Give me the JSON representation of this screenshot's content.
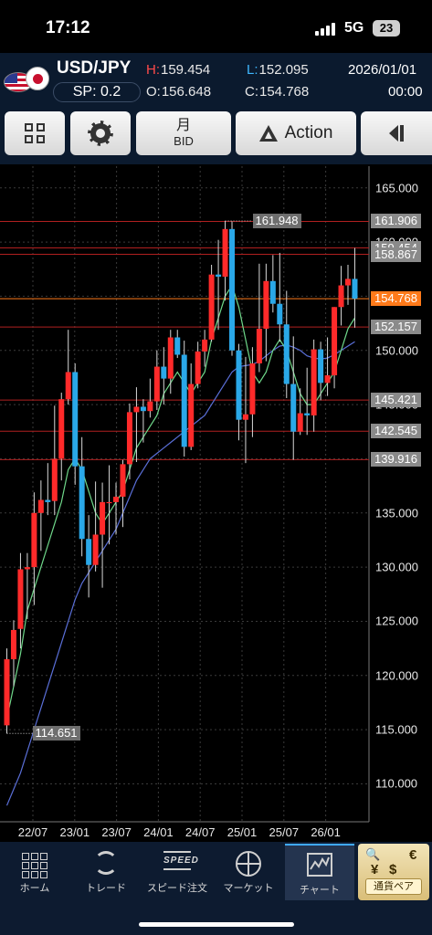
{
  "status_bar": {
    "time": "17:12",
    "network": "5G",
    "battery": "23"
  },
  "quote": {
    "pair": "USD/JPY",
    "spread": "SP: 0.2",
    "high_key": "H:",
    "high": "159.454",
    "low_key": "L:",
    "low": "152.095",
    "open_key": "O:",
    "open": "156.648",
    "close_key": "C:",
    "close": "154.768",
    "date": "2026/01/01",
    "time": "00:00"
  },
  "toolbar": {
    "period": "月",
    "price_type": "BID",
    "action_label": "Action"
  },
  "chart_data": {
    "type": "candlestick",
    "timeframe": "monthly",
    "y_ticks": [
      "165.000",
      "160.000",
      "155.000",
      "150.000",
      "145.000",
      "140.000",
      "135.000",
      "130.000",
      "125.000",
      "120.000",
      "115.000",
      "110.000"
    ],
    "y_range": [
      106.5,
      167
    ],
    "x_ticks": [
      "22/07",
      "23/01",
      "23/07",
      "24/01",
      "24/07",
      "25/01",
      "25/07",
      "26/01"
    ],
    "level_lines": [
      {
        "label": "161.906",
        "value": 161.906,
        "current": false
      },
      {
        "label": "159.454",
        "value": 159.454,
        "current": false
      },
      {
        "label": "158.867",
        "value": 158.867,
        "current": false
      },
      {
        "label": "154.768",
        "value": 154.768,
        "current": true
      },
      {
        "label": "152.157",
        "value": 152.157,
        "current": false
      },
      {
        "label": "145.421",
        "value": 145.421,
        "current": false
      },
      {
        "label": "142.545",
        "value": 142.545,
        "current": false
      },
      {
        "label": "139.916",
        "value": 139.916,
        "current": false
      }
    ],
    "max_label": "161.948",
    "max_value": 161.948,
    "min_label": "114.651",
    "min_value": 114.651,
    "up_color": "#ff2a2a",
    "down_color": "#2aa8e8",
    "candles": [
      [
        115.4,
        122.5,
        114.651,
        121.5
      ],
      [
        121.5,
        125.1,
        119.0,
        124.2
      ],
      [
        124.3,
        131.3,
        122.5,
        129.8
      ],
      [
        129.8,
        131.3,
        125.2,
        130.0
      ],
      [
        130.0,
        136.9,
        126.5,
        135.0
      ],
      [
        135.0,
        138.0,
        131.5,
        136.2
      ],
      [
        136.2,
        139.6,
        134.8,
        136.0
      ],
      [
        136.1,
        144.9,
        134.8,
        140.0
      ],
      [
        140.0,
        146.1,
        138.0,
        145.5
      ],
      [
        145.5,
        151.9,
        145.0,
        148.0
      ],
      [
        148.0,
        148.8,
        137.6,
        139.3
      ],
      [
        139.3,
        142.0,
        131.0,
        132.6
      ],
      [
        132.6,
        134.8,
        127.2,
        130.2
      ],
      [
        130.2,
        137.9,
        129.6,
        133.0
      ],
      [
        133.0,
        137.8,
        128.1,
        136.0
      ],
      [
        136.0,
        139.4,
        132.1,
        136.0
      ],
      [
        136.0,
        137.8,
        133.0,
        136.5
      ],
      [
        136.5,
        139.9,
        133.7,
        139.5
      ],
      [
        139.5,
        145.1,
        138.1,
        144.3
      ],
      [
        144.3,
        146.6,
        139.7,
        144.8
      ],
      [
        144.8,
        145.5,
        141.5,
        144.4
      ],
      [
        144.4,
        147.4,
        143.8,
        145.3
      ],
      [
        145.3,
        150.0,
        144.5,
        148.5
      ],
      [
        148.5,
        150.3,
        145.0,
        147.4
      ],
      [
        147.4,
        151.9,
        146.0,
        151.2
      ],
      [
        151.2,
        151.9,
        149.3,
        149.6
      ],
      [
        149.6,
        150.9,
        140.2,
        141.1
      ],
      [
        141.1,
        148.8,
        140.8,
        146.9
      ],
      [
        146.9,
        150.8,
        146.5,
        149.9
      ],
      [
        149.9,
        151.9,
        148.5,
        151.0
      ],
      [
        151.0,
        157.9,
        150.8,
        157.0
      ],
      [
        157.0,
        160.2,
        151.9,
        156.8
      ],
      [
        156.8,
        161.948,
        154.6,
        161.2
      ],
      [
        161.2,
        161.9,
        149.5,
        150.0
      ],
      [
        150.0,
        150.6,
        141.7,
        143.6
      ],
      [
        143.6,
        149.4,
        139.6,
        144.1
      ],
      [
        144.1,
        150.3,
        142.0,
        148.8
      ],
      [
        148.8,
        158.0,
        148.0,
        152.0
      ],
      [
        152.0,
        158.0,
        149.0,
        156.4
      ],
      [
        156.4,
        158.8,
        153.5,
        154.3
      ],
      [
        154.3,
        159.0,
        150.8,
        152.4
      ],
      [
        152.4,
        155.5,
        145.6,
        146.9
      ],
      [
        146.9,
        151.3,
        139.9,
        142.5
      ],
      [
        142.5,
        146.5,
        142.2,
        144.2
      ],
      [
        144.2,
        148.4,
        142.2,
        144.0
      ],
      [
        144.0,
        151.0,
        142.5,
        150.1
      ],
      [
        150.1,
        150.8,
        145.4,
        147.0
      ],
      [
        147.0,
        151.2,
        145.8,
        147.7
      ],
      [
        147.7,
        154.0,
        146.5,
        154.0
      ],
      [
        154.0,
        157.8,
        152.3,
        156.0
      ],
      [
        156.0,
        157.9,
        154.2,
        156.6
      ],
      [
        156.6,
        159.454,
        152.095,
        154.768
      ]
    ],
    "ma_fast": [
      116,
      119,
      122,
      126,
      128,
      130,
      132,
      134,
      136,
      139,
      140,
      139,
      137,
      135,
      134,
      135,
      136,
      137,
      139,
      141,
      142,
      143,
      144,
      146,
      147,
      148,
      147,
      146,
      147,
      148,
      151,
      153,
      155,
      156,
      154,
      151,
      148,
      147,
      148,
      150,
      151,
      150,
      148,
      146,
      145,
      145,
      146,
      147,
      148,
      150,
      152,
      153
    ],
    "ma_slow": [
      108,
      109.5,
      111,
      113,
      115,
      117,
      119,
      121,
      123,
      125,
      127,
      128.5,
      129.5,
      130.5,
      131.5,
      132.5,
      133.5,
      135,
      136.5,
      138,
      139,
      140,
      140.5,
      141,
      141.5,
      142,
      142.5,
      143,
      143.5,
      144,
      145,
      146,
      147,
      148,
      148.5,
      148.6,
      148.7,
      149,
      149.5,
      150,
      150.4,
      150.5,
      150.3,
      150,
      149.5,
      149.3,
      149.2,
      149.3,
      149.6,
      150,
      150.4,
      150.8
    ]
  },
  "nav": {
    "home": "ホーム",
    "trade": "トレード",
    "speed_order": "スピード注文",
    "speed_icon_text": "SPEED",
    "market": "マーケット",
    "chart": "チャート",
    "currency_pair": "通貨ペア",
    "cp_sym1": "€",
    "cp_sym2": "¥",
    "cp_sym3": "$"
  }
}
